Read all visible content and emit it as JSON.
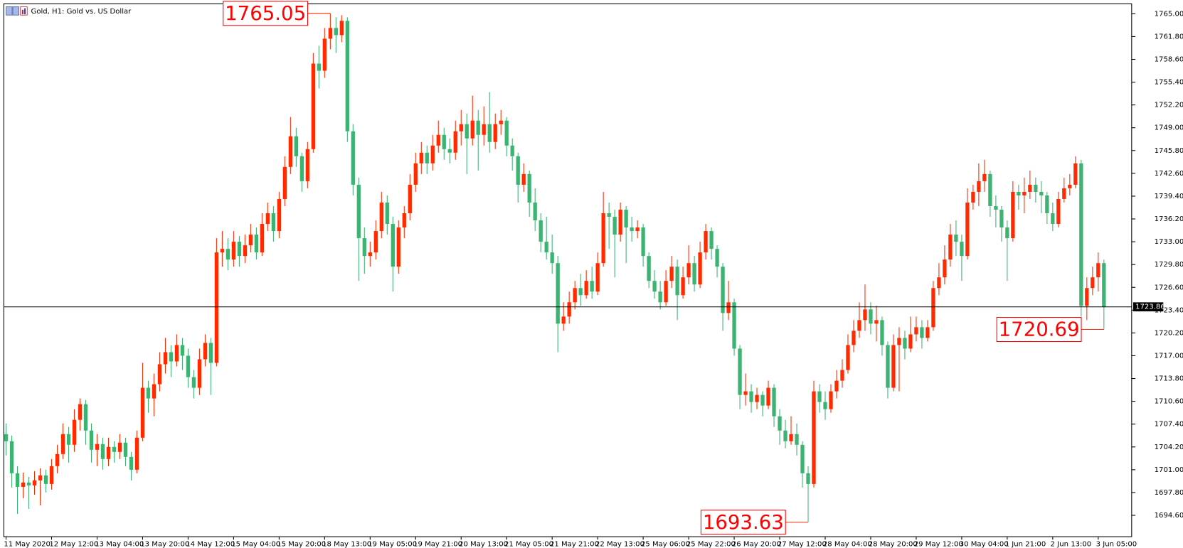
{
  "chart_data": {
    "type": "candlestick",
    "title": "Gold, H1: Gold vs. US Dollar",
    "up_color": "#ff2a00",
    "down_color": "#3cb371",
    "categories": [
      "11 May 2020",
      null,
      null,
      null,
      null,
      null,
      null,
      null,
      "12 May 12:00",
      null,
      null,
      null,
      null,
      null,
      null,
      null,
      "13 May 04:00",
      null,
      null,
      null,
      null,
      null,
      null,
      null,
      "13 May 20:00",
      null,
      null,
      null,
      null,
      null,
      null,
      null,
      "14 May 12:00",
      null,
      null,
      null,
      null,
      null,
      null,
      null,
      "15 May 04:00",
      null,
      null,
      null,
      null,
      null,
      null,
      null,
      "15 May 20:00",
      null,
      null,
      null,
      null,
      null,
      null,
      null,
      "18 May 13:00",
      null,
      null,
      null,
      null,
      null,
      null,
      null,
      "19 May 05:00",
      null,
      null,
      null,
      null,
      null,
      null,
      null,
      "19 May 21:00",
      null,
      null,
      null,
      null,
      null,
      null,
      null,
      "20 May 13:00",
      null,
      null,
      null,
      null,
      null,
      null,
      null,
      "21 May 05:00",
      null,
      null,
      null,
      null,
      null,
      null,
      null,
      "21 May 21:00",
      null,
      null,
      null,
      null,
      null,
      null,
      null,
      "22 May 13:00",
      null,
      null,
      null,
      null,
      null,
      null,
      null,
      "25 May 06:00",
      null,
      null,
      null,
      null,
      null,
      null,
      null,
      "25 May 22:00",
      null,
      null,
      null,
      null,
      null,
      null,
      null,
      "26 May 20:00",
      null,
      null,
      null,
      null,
      null,
      null,
      null,
      "27 May 12:00",
      null,
      null,
      null,
      null,
      null,
      null,
      null,
      "28 May 04:00",
      null,
      null,
      null,
      null,
      null,
      null,
      null,
      "28 May 20:00",
      null,
      null,
      null,
      null,
      null,
      null,
      null,
      "29 May 12:00",
      null,
      null,
      null,
      null,
      null,
      null,
      null,
      "30 May 04:00",
      null,
      null,
      null,
      null,
      null,
      null,
      null,
      "1 Jun 21:00",
      null,
      null,
      null,
      null,
      null,
      null,
      null,
      "2 Jun 13:00",
      null,
      null,
      null,
      null,
      null,
      null,
      null,
      "3 Jun 05:00",
      null
    ],
    "open": [
      1706.0,
      1705.0,
      1700.5,
      1698.6,
      1699.2,
      1698.8,
      1699.5,
      1700.2,
      1699.0,
      1701.5,
      1703.2,
      1706.0,
      1704.5,
      1708.0,
      1710.2,
      1706.5,
      1703.8,
      1704.6,
      1702.5,
      1704.2,
      1703.5,
      1704.8,
      1702.8,
      1701.0,
      1705.5,
      1712.5,
      1711.0,
      1713.0,
      1715.8,
      1717.5,
      1716.2,
      1718.5,
      1717.0,
      1714.0,
      1712.5,
      1716.5,
      1718.8,
      1716.0,
      1731.5,
      1732.0,
      1730.5,
      1733.0,
      1731.0,
      1732.5,
      1734.0,
      1731.5,
      1735.5,
      1737.0,
      1734.5,
      1739.0,
      1743.5,
      1747.8,
      1745.0,
      1741.5,
      1746.0,
      1758.0,
      1757.0,
      1761.5,
      1763.0,
      1762.0,
      1764.0,
      1748.5,
      1741.0,
      1733.5,
      1731.0,
      1731.5,
      1734.5,
      1738.5,
      1735.5,
      1729.5,
      1735.0,
      1737.0,
      1741.0,
      1744.0,
      1745.5,
      1744.0,
      1746.5,
      1748.0,
      1746.0,
      1745.5,
      1748.5,
      1749.5,
      1747.5,
      1750.0,
      1748.0,
      1749.5,
      1747.0,
      1749.5,
      1750.0,
      1746.5,
      1745.0,
      1741.0,
      1742.5,
      1738.5,
      1736.0,
      1733.0,
      1731.5,
      1730.0,
      1721.5,
      1722.5,
      1724.5,
      1726.5,
      1725.5,
      1727.5,
      1726.0,
      1730.0,
      1737.0,
      1736.5,
      1734.0,
      1737.5,
      1735.0,
      1734.5,
      1735.0,
      1731.0,
      1727.5,
      1726.0,
      1724.5,
      1727.5,
      1729.5,
      1725.5,
      1728.0,
      1730.0,
      1727.0,
      1731.5,
      1734.5,
      1732.0,
      1729.5,
      1723.0,
      1724.5,
      1718.0,
      1711.5,
      1712.0,
      1710.5,
      1711.5,
      1710.0,
      1712.5,
      1708.5,
      1706.5,
      1705.0,
      1706.0,
      1704.5,
      1700.5,
      1699.0,
      1712.0,
      1710.5,
      1709.5,
      1712.0,
      1713.5,
      1715.0,
      1718.5,
      1720.5,
      1722.0,
      1723.5,
      1721.5,
      1722.0,
      1718.5,
      1712.5,
      1718.5,
      1719.5,
      1718.0,
      1720.0,
      1721.0,
      1719.5,
      1721.0,
      1726.5,
      1728.0,
      1730.5,
      1734.0,
      1733.0,
      1731.0,
      1738.5,
      1740.0,
      1741.5,
      1742.5,
      1738.0,
      1737.5,
      1735.0,
      1733.5,
      1740.0,
      1739.5,
      1740.0,
      1741.0,
      1740.0,
      1739.5,
      1737.0,
      1735.5,
      1739.0,
      1740.5,
      1741.0,
      1744.0,
      1724.0,
      1726.5,
      1728.0,
      1730.0
    ],
    "high": [
      1707.5,
      1705.8,
      1701.5,
      1700.6,
      1700.0,
      1700.8,
      1701.2,
      1701.0,
      1702.5,
      1704.5,
      1707.5,
      1707.0,
      1709.5,
      1711.0,
      1710.8,
      1707.5,
      1706.0,
      1705.5,
      1705.5,
      1705.0,
      1706.0,
      1705.5,
      1703.5,
      1706.5,
      1716.0,
      1713.5,
      1714.5,
      1717.5,
      1719.5,
      1718.5,
      1720.0,
      1719.5,
      1718.0,
      1715.0,
      1718.0,
      1720.0,
      1719.5,
      1733.5,
      1734.5,
      1733.5,
      1734.5,
      1733.8,
      1734.0,
      1735.5,
      1735.0,
      1737.0,
      1738.5,
      1738.0,
      1740.0,
      1745.0,
      1750.5,
      1749.0,
      1745.5,
      1747.0,
      1759.5,
      1760.5,
      1763.0,
      1765.05,
      1764.5,
      1764.8,
      1764.5,
      1749.5,
      1742.0,
      1735.0,
      1733.0,
      1736.0,
      1740.0,
      1739.5,
      1736.5,
      1736.0,
      1738.0,
      1742.5,
      1745.5,
      1747.0,
      1746.5,
      1748.0,
      1750.0,
      1749.0,
      1747.5,
      1750.0,
      1751.5,
      1751.0,
      1753.5,
      1751.5,
      1752.0,
      1754.0,
      1751.0,
      1751.5,
      1750.5,
      1747.5,
      1745.5,
      1744.0,
      1743.0,
      1740.5,
      1737.0,
      1736.5,
      1734.0,
      1731.0,
      1724.5,
      1726.0,
      1727.5,
      1728.5,
      1729.0,
      1729.5,
      1731.5,
      1740.0,
      1738.5,
      1737.5,
      1738.5,
      1738.0,
      1736.5,
      1736.0,
      1735.5,
      1731.5,
      1729.0,
      1727.5,
      1729.0,
      1731.0,
      1730.5,
      1729.5,
      1732.5,
      1731.0,
      1733.0,
      1735.5,
      1735.0,
      1732.5,
      1730.0,
      1727.5,
      1725.0,
      1718.5,
      1714.5,
      1713.0,
      1712.5,
      1712.0,
      1713.5,
      1713.0,
      1709.5,
      1708.0,
      1708.5,
      1707.5,
      1705.0,
      1701.5,
      1713.5,
      1713.0,
      1712.0,
      1713.0,
      1715.0,
      1716.5,
      1720.0,
      1722.0,
      1724.5,
      1727.0,
      1724.5,
      1724.0,
      1722.5,
      1719.0,
      1720.0,
      1721.0,
      1720.5,
      1722.5,
      1722.5,
      1722.0,
      1722.0,
      1727.5,
      1730.0,
      1732.5,
      1735.5,
      1736.0,
      1734.0,
      1740.5,
      1741.0,
      1744.0,
      1744.5,
      1743.0,
      1739.5,
      1738.0,
      1736.0,
      1741.5,
      1741.0,
      1742.0,
      1743.0,
      1742.0,
      1741.5,
      1740.0,
      1738.5,
      1740.0,
      1742.0,
      1742.5,
      1745.0,
      1744.5,
      1728.0,
      1729.5,
      1731.5,
      1730.5
    ],
    "low": [
      1703.0,
      1698.5,
      1694.8,
      1697.0,
      1695.5,
      1697.5,
      1696.0,
      1697.8,
      1698.2,
      1700.5,
      1702.5,
      1702.0,
      1703.5,
      1706.5,
      1704.5,
      1702.0,
      1701.5,
      1701.0,
      1701.5,
      1702.0,
      1702.5,
      1701.5,
      1699.5,
      1700.5,
      1705.0,
      1709.0,
      1708.5,
      1712.0,
      1714.5,
      1714.0,
      1715.5,
      1715.0,
      1712.5,
      1711.0,
      1711.5,
      1715.5,
      1711.5,
      1715.5,
      1729.5,
      1729.0,
      1729.5,
      1729.5,
      1730.0,
      1731.5,
      1730.5,
      1731.0,
      1734.5,
      1733.0,
      1733.5,
      1738.0,
      1742.5,
      1743.5,
      1740.0,
      1740.5,
      1745.5,
      1754.5,
      1756.0,
      1760.0,
      1759.5,
      1761.0,
      1747.0,
      1739.5,
      1727.5,
      1728.5,
      1729.5,
      1730.5,
      1733.5,
      1734.0,
      1726.0,
      1728.5,
      1733.5,
      1736.0,
      1740.0,
      1742.5,
      1742.5,
      1743.0,
      1745.5,
      1744.5,
      1744.0,
      1744.5,
      1746.5,
      1742.5,
      1746.5,
      1743.0,
      1746.5,
      1745.5,
      1746.0,
      1748.0,
      1745.0,
      1743.0,
      1738.5,
      1740.0,
      1736.5,
      1734.5,
      1731.5,
      1730.5,
      1728.5,
      1717.5,
      1720.5,
      1721.5,
      1723.5,
      1724.0,
      1725.0,
      1725.0,
      1725.5,
      1729.5,
      1732.0,
      1728.0,
      1733.0,
      1730.0,
      1733.0,
      1733.5,
      1729.5,
      1726.5,
      1725.0,
      1723.5,
      1724.0,
      1726.5,
      1722.0,
      1725.0,
      1727.0,
      1726.0,
      1726.5,
      1730.5,
      1730.5,
      1728.0,
      1720.5,
      1722.0,
      1717.0,
      1709.5,
      1710.0,
      1709.0,
      1709.5,
      1708.5,
      1709.5,
      1707.0,
      1704.5,
      1704.0,
      1704.5,
      1703.0,
      1698.5,
      1693.63,
      1698.5,
      1709.0,
      1708.0,
      1709.0,
      1711.0,
      1712.5,
      1714.5,
      1717.5,
      1719.5,
      1720.5,
      1720.0,
      1719.0,
      1717.0,
      1711.0,
      1712.0,
      1712.0,
      1716.5,
      1717.5,
      1719.0,
      1718.0,
      1719.0,
      1720.5,
      1725.5,
      1727.0,
      1729.5,
      1731.0,
      1727.5,
      1730.5,
      1737.5,
      1738.0,
      1740.0,
      1736.5,
      1735.0,
      1733.0,
      1727.5,
      1733.0,
      1737.5,
      1737.0,
      1739.0,
      1738.5,
      1737.0,
      1735.5,
      1734.5,
      1735.0,
      1738.5,
      1739.5,
      1740.5,
      1722.5,
      1722.0,
      1725.5,
      1726.0,
      1720.69
    ],
    "close": [
      1705.0,
      1700.5,
      1698.6,
      1699.2,
      1698.8,
      1699.5,
      1700.2,
      1699.0,
      1701.5,
      1703.2,
      1706.0,
      1704.5,
      1708.0,
      1710.2,
      1706.5,
      1703.8,
      1704.6,
      1702.5,
      1704.2,
      1703.5,
      1704.8,
      1702.8,
      1701.0,
      1705.5,
      1712.5,
      1711.0,
      1713.0,
      1715.8,
      1717.5,
      1716.2,
      1718.5,
      1717.0,
      1714.0,
      1712.5,
      1716.5,
      1718.8,
      1716.0,
      1731.5,
      1732.0,
      1730.5,
      1733.0,
      1731.0,
      1732.5,
      1734.0,
      1731.5,
      1735.5,
      1737.0,
      1734.5,
      1739.0,
      1743.5,
      1747.8,
      1745.0,
      1741.5,
      1746.0,
      1758.0,
      1757.0,
      1761.5,
      1763.0,
      1762.0,
      1764.0,
      1748.5,
      1741.0,
      1733.5,
      1731.0,
      1731.5,
      1734.5,
      1738.5,
      1735.5,
      1729.5,
      1735.0,
      1737.0,
      1741.0,
      1744.0,
      1745.5,
      1744.0,
      1746.5,
      1748.0,
      1746.0,
      1745.5,
      1748.5,
      1749.5,
      1747.5,
      1750.0,
      1748.0,
      1749.5,
      1747.0,
      1749.5,
      1750.0,
      1746.5,
      1745.0,
      1741.0,
      1742.5,
      1738.5,
      1736.0,
      1733.0,
      1731.5,
      1730.0,
      1721.5,
      1722.5,
      1724.5,
      1726.5,
      1725.5,
      1727.5,
      1726.0,
      1730.0,
      1737.0,
      1736.5,
      1734.0,
      1737.5,
      1735.0,
      1734.5,
      1735.0,
      1731.0,
      1727.5,
      1726.0,
      1724.5,
      1727.5,
      1729.5,
      1725.5,
      1728.0,
      1730.0,
      1727.0,
      1731.5,
      1734.5,
      1732.0,
      1729.5,
      1723.0,
      1724.5,
      1718.0,
      1711.5,
      1712.0,
      1710.5,
      1711.5,
      1710.0,
      1712.5,
      1708.5,
      1706.5,
      1705.0,
      1706.0,
      1704.5,
      1700.5,
      1699.0,
      1712.0,
      1710.5,
      1709.5,
      1712.0,
      1713.5,
      1715.0,
      1718.5,
      1720.5,
      1722.0,
      1723.5,
      1721.5,
      1722.0,
      1718.5,
      1712.5,
      1718.5,
      1719.5,
      1718.0,
      1720.0,
      1721.0,
      1719.5,
      1721.0,
      1726.5,
      1728.0,
      1730.5,
      1734.0,
      1733.0,
      1731.0,
      1738.5,
      1740.0,
      1741.5,
      1742.5,
      1738.0,
      1737.5,
      1735.0,
      1733.5,
      1740.0,
      1739.5,
      1740.0,
      1741.0,
      1740.0,
      1739.5,
      1737.0,
      1735.5,
      1739.0,
      1740.5,
      1741.0,
      1744.0,
      1724.0,
      1726.5,
      1728.0,
      1730.0,
      1723.86
    ],
    "ylim": [
      1691.6,
      1766.4
    ],
    "yticks": [
      {
        "value": 1765,
        "label": "1765.00"
      },
      {
        "value": 1761.8,
        "label": "1761.80"
      },
      {
        "value": 1758.6,
        "label": "1758.60"
      },
      {
        "value": 1755.4,
        "label": "1755.40"
      },
      {
        "value": 1752.2,
        "label": "1752.20"
      },
      {
        "value": 1749,
        "label": "1749.00"
      },
      {
        "value": 1745.8,
        "label": "1745.80"
      },
      {
        "value": 1742.6,
        "label": "1742.60"
      },
      {
        "value": 1739.4,
        "label": "1739.40"
      },
      {
        "value": 1736.2,
        "label": "1736.20"
      },
      {
        "value": 1733,
        "label": "1733.00"
      },
      {
        "value": 1729.8,
        "label": "1729.80"
      },
      {
        "value": 1726.6,
        "label": "1726.60"
      },
      {
        "value": 1723.4,
        "label": "1723.40"
      },
      {
        "value": 1720.2,
        "label": "1720.20"
      },
      {
        "value": 1717,
        "label": "1717.00"
      },
      {
        "value": 1713.8,
        "label": "1713.80"
      },
      {
        "value": 1710.6,
        "label": "1710.60"
      },
      {
        "value": 1707.4,
        "label": "1707.40"
      },
      {
        "value": 1704.2,
        "label": "1704.20"
      },
      {
        "value": 1701,
        "label": "1701.00"
      },
      {
        "value": 1697.8,
        "label": "1697.80"
      },
      {
        "value": 1694.6,
        "label": "1694.60"
      }
    ],
    "last_price": 1723.86,
    "annotations": [
      1765.05,
      1720.69,
      1693.63
    ]
  }
}
